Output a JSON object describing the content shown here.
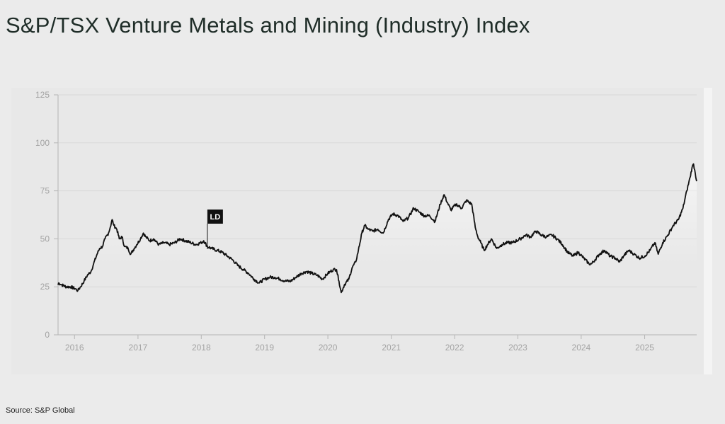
{
  "title": "S&P/TSX Venture Metals and Mining (Industry) Index",
  "source": "Source: S&P Global",
  "chart_data": {
    "type": "line",
    "title": "S&P/TSX Venture Metals and Mining (Industry) Index",
    "xlabel": "",
    "ylabel": "",
    "x_ticks": [
      "2016",
      "2017",
      "2018",
      "2019",
      "2020",
      "2021",
      "2022",
      "2023",
      "2024",
      "2025"
    ],
    "y_ticks": [
      0,
      25,
      50,
      75,
      100,
      125
    ],
    "ylim": [
      0,
      125
    ],
    "xlim": [
      "2015-09-28",
      "2025-10-28"
    ],
    "grid": true,
    "legend": "none",
    "annotation": {
      "label": "LD",
      "date": "2018-02-05"
    },
    "colors": {
      "line": "#111111",
      "grid": "#d9d9d9",
      "axis": "#b5b5b5",
      "tick_label": "#a3a3a3",
      "annotation_bg": "#111111",
      "annotation_text": "#ffffff"
    },
    "series": [
      {
        "points": [
          [
            "2015-09-28",
            26
          ],
          [
            "2015-10-01",
            27
          ],
          [
            "2015-10-20",
            26
          ],
          [
            "2015-11-15",
            25
          ],
          [
            "2015-12-10",
            25
          ],
          [
            "2016-01-05",
            24
          ],
          [
            "2016-01-20",
            23
          ],
          [
            "2016-02-05",
            25
          ],
          [
            "2016-02-25",
            28
          ],
          [
            "2016-03-15",
            31
          ],
          [
            "2016-04-05",
            33
          ],
          [
            "2016-04-20",
            37
          ],
          [
            "2016-05-10",
            42
          ],
          [
            "2016-05-25",
            45
          ],
          [
            "2016-06-10",
            46
          ],
          [
            "2016-06-25",
            50
          ],
          [
            "2016-07-15",
            53
          ],
          [
            "2016-07-25",
            56
          ],
          [
            "2016-08-05",
            60
          ],
          [
            "2016-08-15",
            57
          ],
          [
            "2016-09-01",
            55
          ],
          [
            "2016-09-15",
            50
          ],
          [
            "2016-10-01",
            51
          ],
          [
            "2016-10-15",
            46
          ],
          [
            "2016-11-05",
            45
          ],
          [
            "2016-11-20",
            42
          ],
          [
            "2016-12-10",
            45
          ],
          [
            "2016-12-25",
            47
          ],
          [
            "2017-01-15",
            50
          ],
          [
            "2017-02-01",
            53
          ],
          [
            "2017-02-15",
            51
          ],
          [
            "2017-03-10",
            49
          ],
          [
            "2017-04-01",
            50
          ],
          [
            "2017-05-01",
            47
          ],
          [
            "2017-06-01",
            48
          ],
          [
            "2017-07-01",
            47
          ],
          [
            "2017-08-01",
            48
          ],
          [
            "2017-09-01",
            50
          ],
          [
            "2017-10-01",
            49
          ],
          [
            "2017-11-01",
            48
          ],
          [
            "2017-12-01",
            47
          ],
          [
            "2018-01-01",
            48
          ],
          [
            "2018-01-15",
            49
          ],
          [
            "2018-02-05",
            46
          ],
          [
            "2018-03-01",
            45
          ],
          [
            "2018-04-01",
            44
          ],
          [
            "2018-05-01",
            43
          ],
          [
            "2018-06-01",
            41
          ],
          [
            "2018-07-01",
            39
          ],
          [
            "2018-08-01",
            36
          ],
          [
            "2018-09-01",
            34
          ],
          [
            "2018-10-01",
            32
          ],
          [
            "2018-11-01",
            29
          ],
          [
            "2018-12-01",
            27
          ],
          [
            "2019-01-01",
            29
          ],
          [
            "2019-02-01",
            30
          ],
          [
            "2019-03-01",
            30
          ],
          [
            "2019-04-01",
            29
          ],
          [
            "2019-05-01",
            28
          ],
          [
            "2019-06-01",
            28
          ],
          [
            "2019-07-01",
            30
          ],
          [
            "2019-08-01",
            32
          ],
          [
            "2019-09-01",
            33
          ],
          [
            "2019-10-01",
            32
          ],
          [
            "2019-11-01",
            31
          ],
          [
            "2019-12-01",
            29
          ],
          [
            "2020-01-01",
            32
          ],
          [
            "2020-02-01",
            34
          ],
          [
            "2020-02-20",
            34
          ],
          [
            "2020-03-05",
            28
          ],
          [
            "2020-03-18",
            22
          ],
          [
            "2020-04-05",
            26
          ],
          [
            "2020-05-01",
            29
          ],
          [
            "2020-05-20",
            35
          ],
          [
            "2020-06-10",
            38
          ],
          [
            "2020-06-25",
            44
          ],
          [
            "2020-07-15",
            53
          ],
          [
            "2020-08-01",
            57
          ],
          [
            "2020-08-20",
            55
          ],
          [
            "2020-09-15",
            54
          ],
          [
            "2020-10-15",
            55
          ],
          [
            "2020-11-15",
            53
          ],
          [
            "2020-12-15",
            60
          ],
          [
            "2021-01-10",
            63
          ],
          [
            "2021-02-10",
            62
          ],
          [
            "2021-03-10",
            59
          ],
          [
            "2021-04-10",
            61
          ],
          [
            "2021-05-10",
            66
          ],
          [
            "2021-06-10",
            64
          ],
          [
            "2021-07-10",
            62
          ],
          [
            "2021-08-10",
            62
          ],
          [
            "2021-09-10",
            59
          ],
          [
            "2021-10-10",
            68
          ],
          [
            "2021-11-01",
            73
          ],
          [
            "2021-11-20",
            69
          ],
          [
            "2021-12-10",
            65
          ],
          [
            "2022-01-10",
            68
          ],
          [
            "2022-02-10",
            66
          ],
          [
            "2022-03-10",
            70
          ],
          [
            "2022-04-10",
            68
          ],
          [
            "2022-04-30",
            56
          ],
          [
            "2022-05-15",
            51
          ],
          [
            "2022-06-01",
            48
          ],
          [
            "2022-06-20",
            44
          ],
          [
            "2022-07-10",
            47
          ],
          [
            "2022-08-01",
            50
          ],
          [
            "2022-09-01",
            45
          ],
          [
            "2022-10-01",
            47
          ],
          [
            "2022-11-01",
            48
          ],
          [
            "2022-12-01",
            48
          ],
          [
            "2023-01-15",
            50
          ],
          [
            "2023-02-15",
            52
          ],
          [
            "2023-03-15",
            51
          ],
          [
            "2023-04-15",
            54
          ],
          [
            "2023-05-15",
            52
          ],
          [
            "2023-06-15",
            51
          ],
          [
            "2023-07-15",
            52
          ],
          [
            "2023-08-15",
            50
          ],
          [
            "2023-09-15",
            47
          ],
          [
            "2023-10-15",
            43
          ],
          [
            "2023-11-15",
            41
          ],
          [
            "2023-12-15",
            43
          ],
          [
            "2024-01-15",
            40
          ],
          [
            "2024-02-15",
            37
          ],
          [
            "2024-03-01",
            37
          ],
          [
            "2024-03-20",
            39
          ],
          [
            "2024-04-15",
            42
          ],
          [
            "2024-05-15",
            44
          ],
          [
            "2024-06-15",
            41
          ],
          [
            "2024-07-15",
            40
          ],
          [
            "2024-08-10",
            38
          ],
          [
            "2024-09-01",
            41
          ],
          [
            "2024-10-01",
            44
          ],
          [
            "2024-11-01",
            42
          ],
          [
            "2024-12-01",
            40
          ],
          [
            "2025-01-01",
            41
          ],
          [
            "2025-02-01",
            44
          ],
          [
            "2025-03-01",
            48
          ],
          [
            "2025-03-20",
            42
          ],
          [
            "2025-04-15",
            48
          ],
          [
            "2025-05-15",
            52
          ],
          [
            "2025-06-15",
            57
          ],
          [
            "2025-07-15",
            60
          ],
          [
            "2025-08-10",
            66
          ],
          [
            "2025-09-01",
            75
          ],
          [
            "2025-09-20",
            82
          ],
          [
            "2025-10-01",
            87
          ],
          [
            "2025-10-10",
            89
          ],
          [
            "2025-10-20",
            84
          ],
          [
            "2025-10-28",
            80
          ]
        ]
      }
    ]
  }
}
